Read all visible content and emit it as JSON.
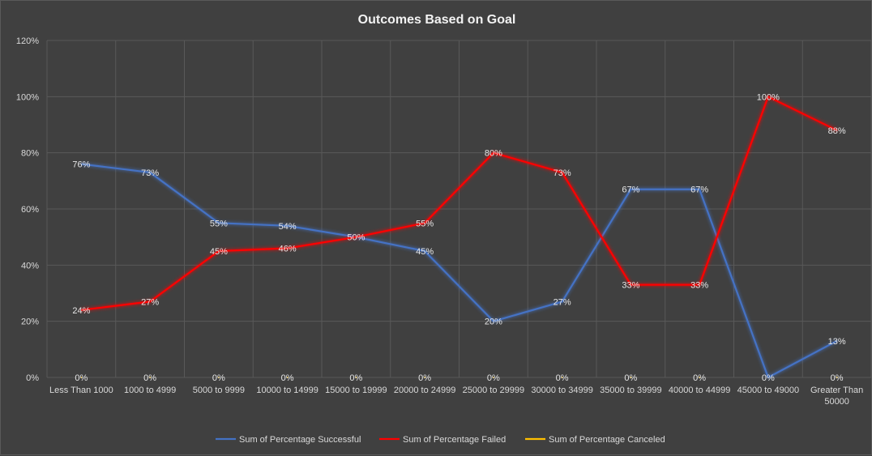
{
  "chart_data": {
    "type": "line",
    "title": "Outcomes Based on Goal",
    "xlabel": "",
    "ylabel": "",
    "ylim": [
      0,
      120
    ],
    "y_ticks": [
      "0%",
      "20%",
      "40%",
      "60%",
      "80%",
      "100%",
      "120%"
    ],
    "grid": true,
    "legend_position": "bottom",
    "categories": [
      "Less Than 1000",
      "1000 to 4999",
      "5000 to 9999",
      "10000 to 14999",
      "15000 to 19999",
      "20000 to 24999",
      "25000 to 29999",
      "30000 to 34999",
      "35000 to 39999",
      "40000 to 44999",
      "45000 to 49000",
      "Greater Than 50000"
    ],
    "series": [
      {
        "name": "Sum of Percentage Successful",
        "color": "#4472c4",
        "values": [
          76,
          73,
          55,
          54,
          50,
          45,
          20,
          27,
          67,
          67,
          0,
          13
        ],
        "labels": [
          "76%",
          "73%",
          "55%",
          "54%",
          "",
          "45%",
          "20%",
          "27%",
          "67%",
          "67%",
          "0%",
          "13%"
        ]
      },
      {
        "name": "Sum of Percentage Failed",
        "color": "#ff0000",
        "values": [
          24,
          27,
          45,
          46,
          50,
          55,
          80,
          73,
          33,
          33,
          100,
          88
        ],
        "labels": [
          "24%",
          "27%",
          "45%",
          "46%",
          "50%",
          "55%",
          "80%",
          "73%",
          "33%",
          "33%",
          "100%",
          "88%"
        ]
      },
      {
        "name": "Sum of Percentage Canceled",
        "color": "#ffc000",
        "values": [
          0,
          0,
          0,
          0,
          0,
          0,
          0,
          0,
          0,
          0,
          0,
          0
        ],
        "labels": [
          "0%",
          "0%",
          "0%",
          "0%",
          "0%",
          "0%",
          "0%",
          "0%",
          "0%",
          "0%",
          "",
          "0%"
        ]
      }
    ]
  }
}
